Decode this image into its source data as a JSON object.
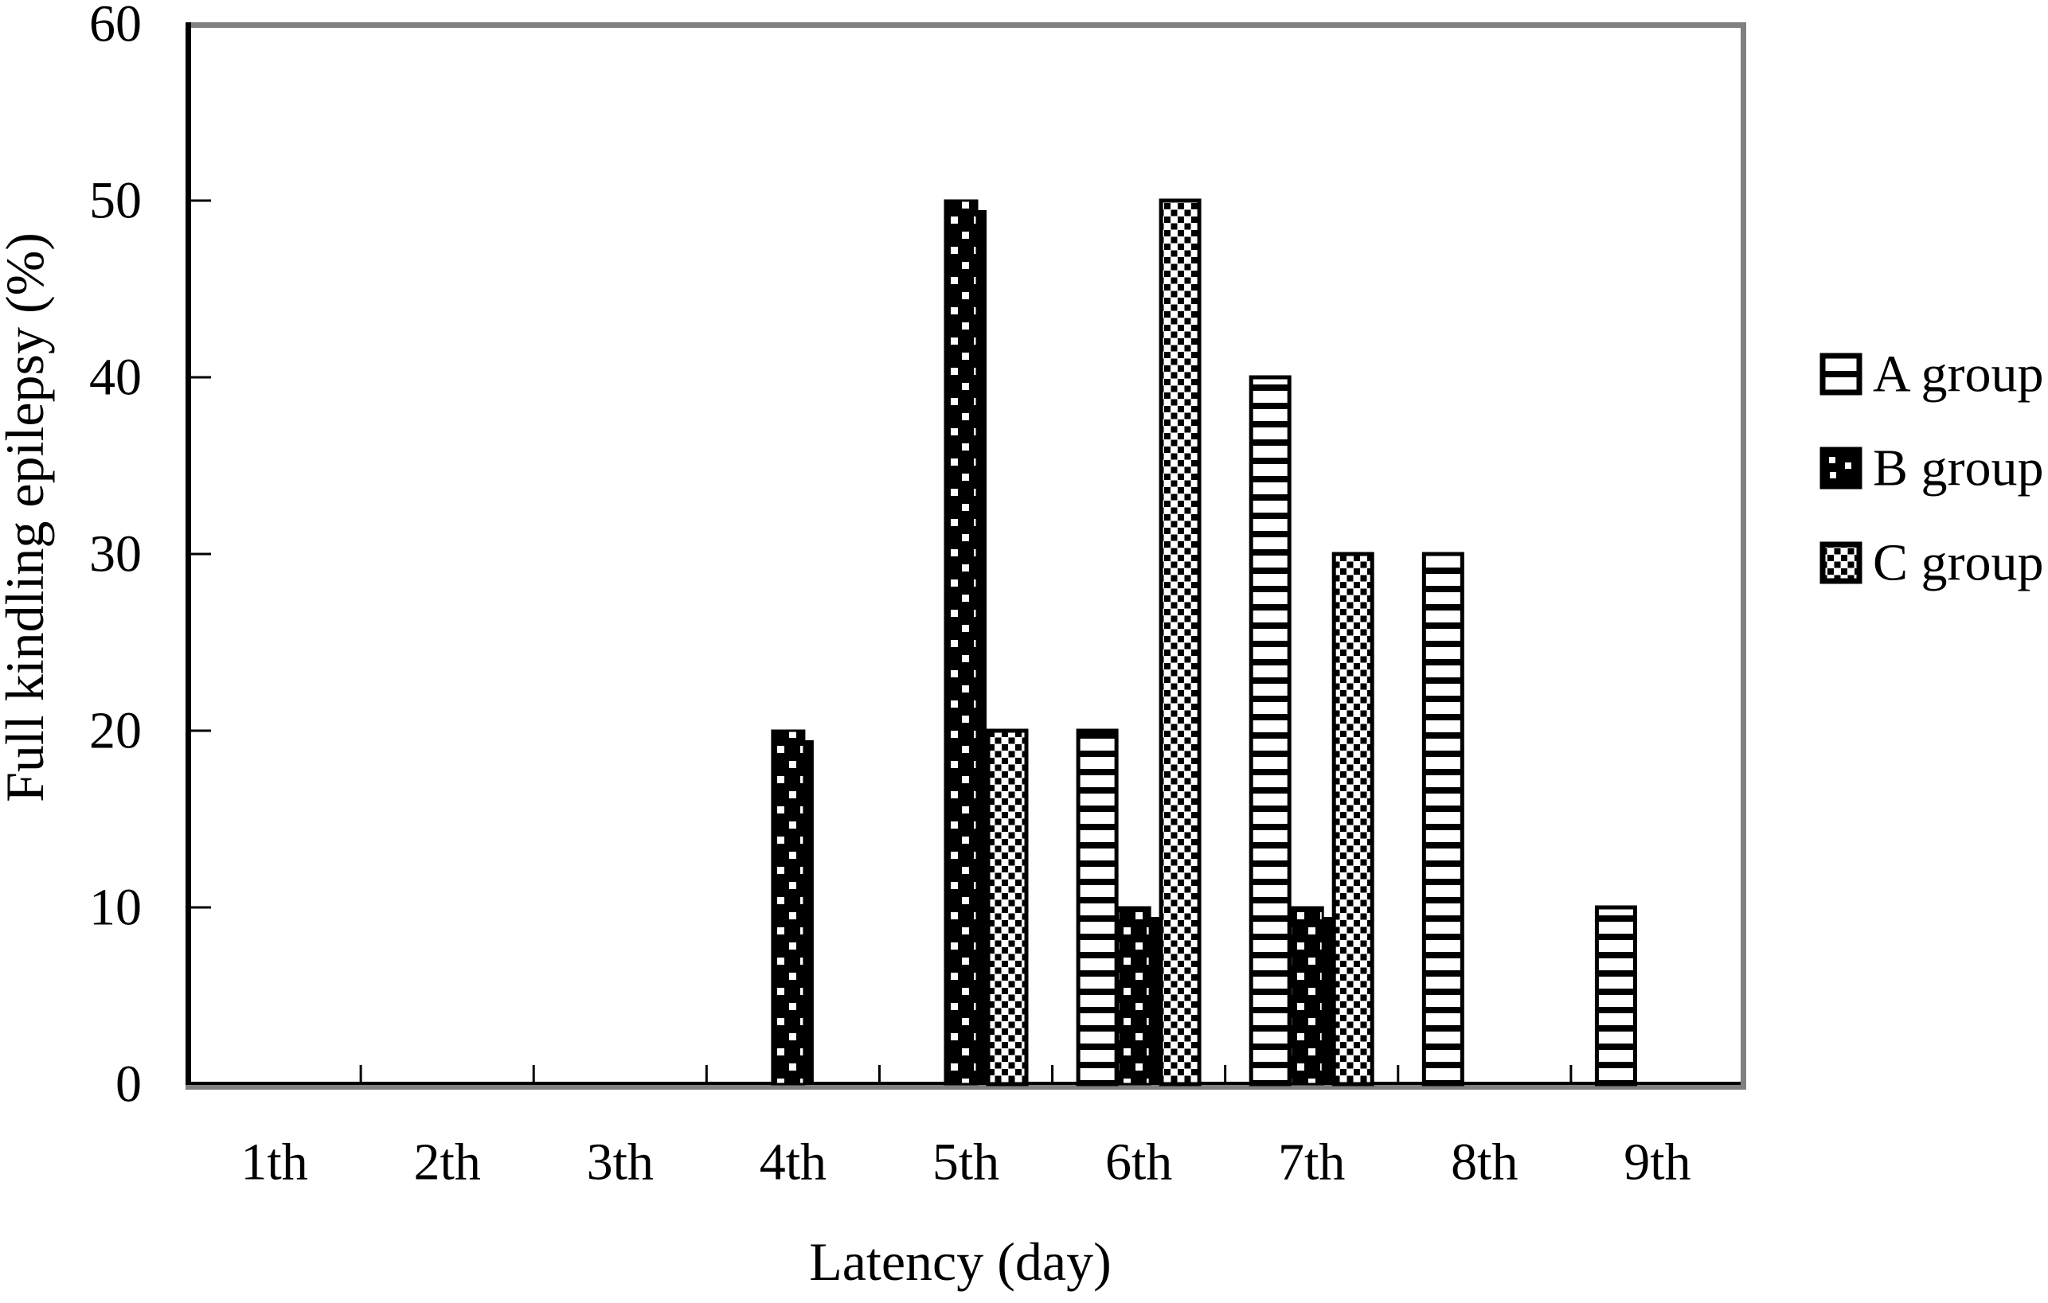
{
  "chart_data": {
    "type": "bar",
    "title": "",
    "xlabel": "Latency (day)",
    "ylabel": "Full kindling epilepsy (%)",
    "categories": [
      "1th",
      "2th",
      "3th",
      "4th",
      "5th",
      "6th",
      "7th",
      "8th",
      "9th"
    ],
    "series": [
      {
        "name": "A group",
        "pattern": "horizontal-stripes",
        "values": [
          0,
          0,
          0,
          0,
          0,
          20,
          40,
          30,
          10
        ]
      },
      {
        "name": "B group",
        "pattern": "black-with-white-dots",
        "values": [
          0,
          0,
          0,
          20,
          50,
          10,
          10,
          0,
          0
        ]
      },
      {
        "name": "C group",
        "pattern": "checkerboard",
        "values": [
          0,
          0,
          0,
          0,
          20,
          50,
          30,
          0,
          0
        ]
      }
    ],
    "ylim": [
      0,
      60
    ],
    "yticks": [
      0,
      10,
      20,
      30,
      40,
      50,
      60
    ],
    "grid": false,
    "legend_position": "right",
    "colors": {
      "foreground": "#000000",
      "plot_border": "#808080",
      "background": "#ffffff"
    }
  }
}
